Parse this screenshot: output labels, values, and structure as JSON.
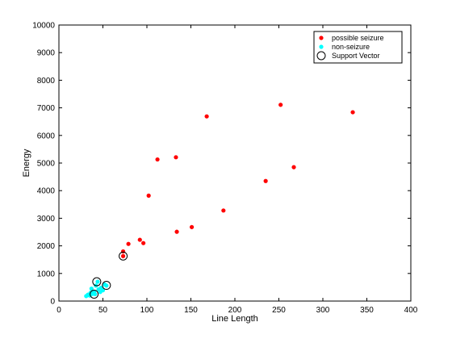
{
  "chart_data": {
    "type": "scatter",
    "xlabel": "Line Length",
    "ylabel": "Energy",
    "xlim": [
      0,
      400
    ],
    "ylim": [
      0,
      10000
    ],
    "x_ticks": [
      0,
      50,
      100,
      150,
      200,
      250,
      300,
      350,
      400
    ],
    "y_ticks": [
      0,
      1000,
      2000,
      3000,
      4000,
      5000,
      6000,
      7000,
      8000,
      9000,
      10000
    ],
    "grid": false,
    "legend_position": "top-right",
    "series": [
      {
        "name": "possible seizure",
        "color": "#ff0000",
        "marker": "filled-circle",
        "points": [
          [
            73,
            1630
          ],
          [
            73,
            1800
          ],
          [
            79,
            2070
          ],
          [
            92,
            2220
          ],
          [
            96,
            2100
          ],
          [
            102,
            3820
          ],
          [
            112,
            5130
          ],
          [
            133,
            5210
          ],
          [
            134,
            2510
          ],
          [
            151,
            2680
          ],
          [
            168,
            6690
          ],
          [
            187,
            3280
          ],
          [
            235,
            4350
          ],
          [
            252,
            7110
          ],
          [
            267,
            4850
          ],
          [
            334,
            6840
          ]
        ]
      },
      {
        "name": "non-seizure",
        "color": "#00ffff",
        "marker": "filled-circle",
        "points": [
          [
            31,
            180
          ],
          [
            33,
            230
          ],
          [
            35,
            200
          ],
          [
            36,
            300
          ],
          [
            37,
            450
          ],
          [
            38,
            260
          ],
          [
            40,
            340
          ],
          [
            41,
            250
          ],
          [
            42,
            560
          ],
          [
            44,
            700
          ],
          [
            45,
            420
          ],
          [
            47,
            330
          ],
          [
            48,
            480
          ],
          [
            50,
            390
          ],
          [
            52,
            600
          ],
          [
            54,
            560
          ]
        ]
      },
      {
        "name": "Support Vector",
        "color": "#000000",
        "marker": "open-circle",
        "points": [
          [
            40,
            250
          ],
          [
            43,
            700
          ],
          [
            54,
            570
          ],
          [
            73,
            1630
          ]
        ]
      }
    ]
  }
}
